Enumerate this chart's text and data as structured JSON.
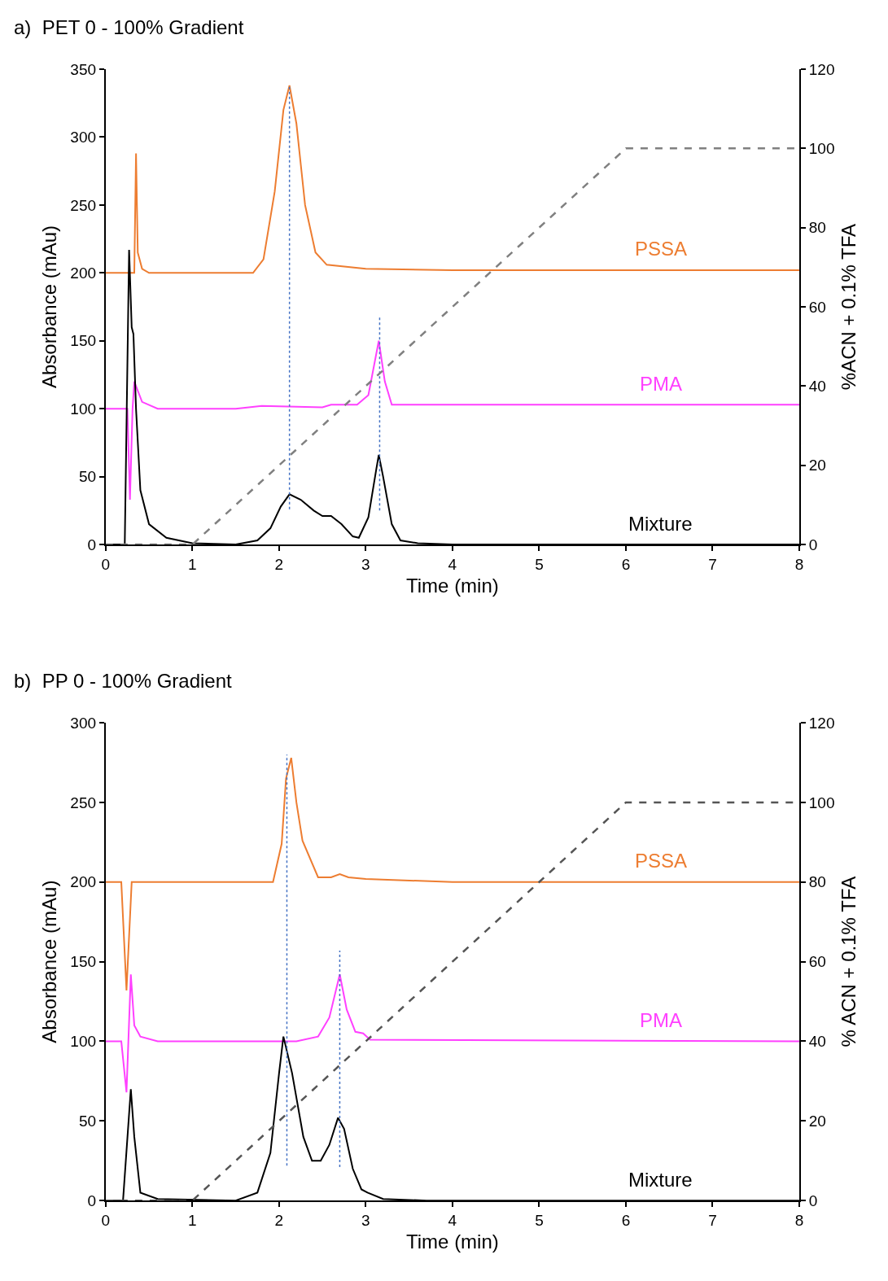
{
  "chart_data": [
    {
      "type": "line",
      "title": "a)  PET 0 - 100% Gradient",
      "xlabel": "Time (min)",
      "ylabel": "Absorbance (mAu)",
      "y2label": "%ACN + 0.1% TFA",
      "xlim": [
        0,
        8
      ],
      "xticks": [
        0,
        1,
        2,
        3,
        4,
        5,
        6,
        7,
        8
      ],
      "ylim": [
        0,
        350
      ],
      "yticks": [
        0,
        50,
        100,
        150,
        200,
        250,
        300,
        350
      ],
      "y2lim": [
        0,
        120
      ],
      "y2ticks": [
        0,
        20,
        40,
        60,
        80,
        100,
        120
      ],
      "series": [
        {
          "name": "PSSA",
          "color": "#ed7d31",
          "x": [
            0,
            0.33,
            0.35,
            0.37,
            0.42,
            0.5,
            1.7,
            1.82,
            1.95,
            2.05,
            2.12,
            2.2,
            2.3,
            2.42,
            2.55,
            3,
            4,
            8
          ],
          "values": [
            200,
            200,
            288,
            215,
            203,
            200,
            200,
            210,
            260,
            320,
            338,
            310,
            250,
            215,
            206,
            203,
            202,
            202
          ]
        },
        {
          "name": "PMA",
          "color": "#ff40ff",
          "x": [
            0,
            0.2,
            0.25,
            0.28,
            0.31,
            0.33,
            0.42,
            0.6,
            1.5,
            1.8,
            2.5,
            2.6,
            2.9,
            3.03,
            3.15,
            3.22,
            3.3,
            8
          ],
          "values": [
            100,
            100,
            100,
            33,
            100,
            120,
            105,
            100,
            100,
            102,
            101,
            103,
            103,
            110,
            150,
            120,
            103,
            103
          ]
        },
        {
          "name": "Mixture",
          "color": "#000000",
          "x": [
            0,
            0.22,
            0.27,
            0.3,
            0.32,
            0.35,
            0.4,
            0.5,
            0.7,
            1.0,
            1.5,
            1.75,
            1.9,
            2.02,
            2.12,
            2.25,
            2.4,
            2.5,
            2.6,
            2.72,
            2.85,
            2.92,
            3.03,
            3.12,
            3.15,
            3.2,
            3.3,
            3.4,
            3.6,
            4,
            8
          ],
          "values": [
            0,
            0,
            217,
            160,
            155,
            100,
            40,
            15,
            5,
            1,
            0,
            3,
            12,
            28,
            37,
            33,
            25,
            21,
            21,
            15,
            6,
            5,
            20,
            55,
            66,
            50,
            15,
            3,
            1,
            0,
            0
          ]
        },
        {
          "color": "#4472c4",
          "line_style": "dotted",
          "x": [
            2.12,
            2.12
          ],
          "values": [
            26,
            338
          ]
        },
        {
          "color": "#4472c4",
          "line_style": "dotted",
          "x": [
            3.16,
            3.16
          ],
          "values": [
            25,
            168
          ]
        },
        {
          "color": "#808080",
          "line_style": "dashed",
          "axis": "y2",
          "x": [
            0,
            1,
            6,
            8
          ],
          "values": [
            0,
            0,
            100,
            100
          ]
        }
      ]
    },
    {
      "type": "line",
      "title": "b)  PP 0 - 100% Gradient",
      "xlabel": "Time (min)",
      "ylabel": "Absorbance (mAu)",
      "y2label": "% ACN + 0.1% TFA",
      "xlim": [
        0,
        8
      ],
      "xticks": [
        0,
        1,
        2,
        3,
        4,
        5,
        6,
        7,
        8
      ],
      "ylim": [
        0,
        300
      ],
      "yticks": [
        0,
        50,
        100,
        150,
        200,
        250,
        300
      ],
      "y2lim": [
        0,
        120
      ],
      "y2ticks": [
        0,
        20,
        40,
        60,
        80,
        100,
        120
      ],
      "series": [
        {
          "name": "PSSA",
          "color": "#ed7d31",
          "x": [
            0,
            0.18,
            0.24,
            0.3,
            1.93,
            2.03,
            2.08,
            2.14,
            2.2,
            2.27,
            2.45,
            2.6,
            2.7,
            2.8,
            3.0,
            4,
            8
          ],
          "values": [
            200,
            200,
            132,
            200,
            200,
            224,
            265,
            278,
            250,
            226,
            203,
            203,
            205,
            203,
            202,
            200,
            200
          ]
        },
        {
          "name": "PMA",
          "color": "#ff40ff",
          "x": [
            0,
            0.18,
            0.24,
            0.29,
            0.33,
            0.4,
            0.6,
            2.2,
            2.45,
            2.58,
            2.7,
            2.78,
            2.88,
            2.97,
            3.05,
            8
          ],
          "values": [
            100,
            100,
            68,
            142,
            110,
            103,
            100,
            100,
            103,
            115,
            142,
            120,
            106,
            105,
            101,
            100
          ]
        },
        {
          "name": "Mixture",
          "color": "#000000",
          "x": [
            0,
            0.2,
            0.29,
            0.33,
            0.4,
            0.6,
            1.5,
            1.75,
            1.9,
            2.0,
            2.05,
            2.15,
            2.28,
            2.38,
            2.48,
            2.58,
            2.68,
            2.75,
            2.85,
            2.95,
            3.02,
            3.2,
            3.7,
            8
          ],
          "values": [
            0,
            0,
            70,
            40,
            5,
            1,
            0,
            5,
            30,
            80,
            103,
            80,
            40,
            25,
            25,
            35,
            52,
            45,
            20,
            7,
            5,
            1,
            0,
            0
          ]
        },
        {
          "color": "#4472c4",
          "line_style": "dotted",
          "x": [
            2.09,
            2.09
          ],
          "values": [
            22,
            280
          ]
        },
        {
          "color": "#4472c4",
          "line_style": "dotted",
          "x": [
            2.7,
            2.7
          ],
          "values": [
            21,
            157
          ]
        },
        {
          "color": "#555555",
          "line_style": "dashed",
          "axis": "y2",
          "x": [
            0,
            1,
            6,
            8
          ],
          "values": [
            0,
            0,
            100,
            100
          ]
        }
      ]
    }
  ]
}
